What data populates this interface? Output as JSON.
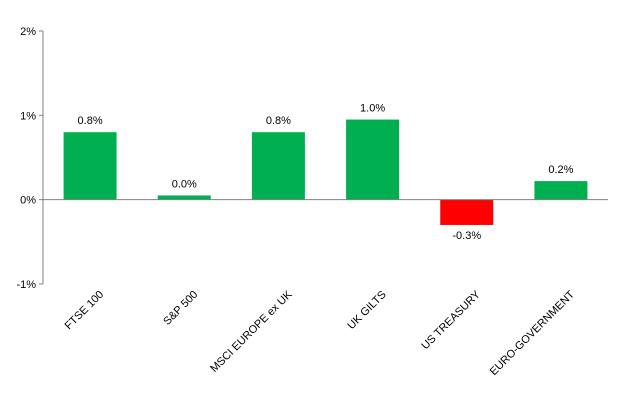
{
  "chart_data": {
    "type": "bar",
    "categories": [
      "FTSE 100",
      "S&P 500",
      "MSCI EUROPE ex UK",
      "UK GILTS",
      "US TREASURY",
      "EURO-GOVERNMENT"
    ],
    "values": [
      0.8,
      0.05,
      0.8,
      0.95,
      -0.3,
      0.22
    ],
    "data_labels": [
      "0.8%",
      "0.0%",
      "0.8%",
      "1.0%",
      "-0.3%",
      "0.2%"
    ],
    "ylim": [
      -1,
      2
    ],
    "yticks": [
      {
        "value": 2,
        "label": "2%"
      },
      {
        "value": 1,
        "label": "1%"
      },
      {
        "value": 0,
        "label": "0%"
      },
      {
        "value": -1,
        "label": "-1%"
      }
    ],
    "colors": {
      "positive": "#00b050",
      "negative": "#ff0000",
      "axis": "#808080"
    },
    "grid": false,
    "legend": "none"
  }
}
